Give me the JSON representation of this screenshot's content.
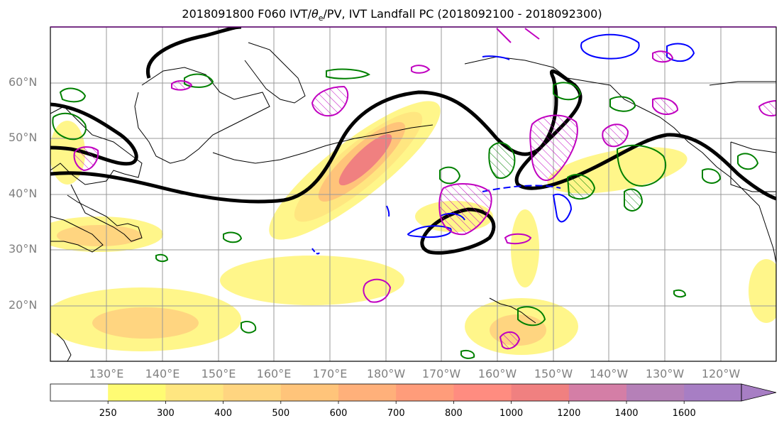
{
  "title": "2018091800 F060 IVT/θe/PV, IVT Landfall PC (2018092100 - 2018092300)",
  "title_parts": {
    "prefix": "2018091800 F060 IVT/",
    "theta": "θ",
    "sub": "e",
    "suffix": "/PV, IVT Landfall PC (2018092100 - 2018092300)"
  },
  "lat_labels": [
    "60°N",
    "50°N",
    "40°N",
    "30°N",
    "20°N"
  ],
  "lon_labels": [
    "130°E",
    "140°E",
    "150°E",
    "160°E",
    "170°E",
    "180°W",
    "170°W",
    "160°W",
    "150°W",
    "140°W",
    "130°W",
    "120°W"
  ],
  "colorbar": {
    "levels": [
      "250",
      "300",
      "400",
      "500",
      "600",
      "700",
      "800",
      "1000",
      "1200",
      "1400",
      "1600"
    ],
    "colors": [
      "#ffffff",
      "#fffb73",
      "#ffe680",
      "#ffd580",
      "#ffc47a",
      "#ffb07a",
      "#ff9c7a",
      "#ff8c80",
      "#f08080",
      "#d47ea6",
      "#b580b8",
      "#a77ec4"
    ]
  },
  "contour_colors": {
    "ivt_fill_low": "#fff68a",
    "ivt_fill_high": "#f08080",
    "thick_line": "#000000",
    "green": "#008000",
    "blue": "#0000ff",
    "magenta": "#c000c0"
  }
}
